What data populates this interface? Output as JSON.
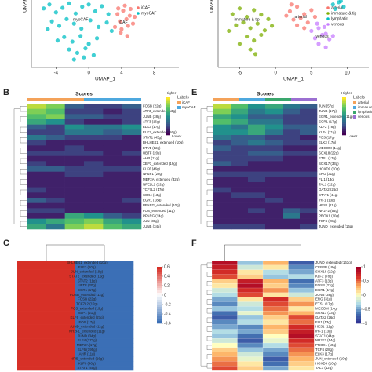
{
  "panels": [
    "B",
    "C",
    "E",
    "F"
  ],
  "chart_data": [
    {
      "type": "scatter",
      "xlabel": "UMAP_1",
      "ylabel": "UMAP_2",
      "xlim": [
        -7,
        11
      ],
      "ylim": [
        -6,
        6
      ],
      "xticks": [
        -4,
        0,
        4,
        8
      ],
      "annotations": [
        {
          "text": "myoCAF",
          "x": -1,
          "y": 2.5
        },
        {
          "text": "iCAF",
          "x": 4.2,
          "y": 2
        }
      ],
      "series": [
        {
          "name": "iCAF",
          "color": "#f8766d",
          "x": [
            3.5,
            4.2,
            5.0,
            3.8,
            4.6,
            5.4,
            3.2,
            4.0,
            4.8,
            5.6,
            3.6,
            4.4,
            5.1,
            3.9,
            4.7
          ],
          "y": [
            3.5,
            4.1,
            3.2,
            2.2,
            2.6,
            1.8,
            1.2,
            0.8,
            1.4,
            3.0,
            4.5,
            5.0,
            4.4,
            0.2,
            -0.4
          ]
        },
        {
          "name": "myoCAF",
          "color": "#00bfc4",
          "x": [
            -5.5,
            -4.8,
            -4.0,
            -3.2,
            -2.4,
            -1.6,
            -0.8,
            0.0,
            0.8,
            1.6,
            2.4,
            -4.5,
            -3.6,
            -2.7,
            -1.8,
            -0.9,
            0.2,
            1.2,
            2.2,
            -3.0,
            -2.0,
            -1.0,
            0.0,
            1.0,
            -2.4,
            -1.4,
            -0.4,
            0.6,
            -1.8,
            -0.6,
            2.8,
            -5.0,
            -3.8
          ],
          "y": [
            4.5,
            5.2,
            3.8,
            4.6,
            5.4,
            3.6,
            4.8,
            5.2,
            4.0,
            4.9,
            3.5,
            2.2,
            1.4,
            2.6,
            1.8,
            0.9,
            2.4,
            1.2,
            2.0,
            -0.6,
            -1.4,
            -0.4,
            -1.8,
            -0.8,
            -2.8,
            -3.4,
            -2.6,
            -3.8,
            -4.6,
            -4.2,
            0.5,
            0.8,
            -1.2
          ]
        }
      ],
      "legend": "upper right"
    },
    {
      "type": "scatter",
      "xlabel": "UMAP_1",
      "ylabel": "UMAP_2",
      "xlim": [
        -8,
        13
      ],
      "ylim": [
        -6,
        6
      ],
      "xticks": [
        -5,
        0,
        5,
        10
      ],
      "annotations": [
        {
          "text": "arterial",
          "x": 3.5,
          "y": 3
        },
        {
          "text": "immature & tip",
          "x": -4,
          "y": 2.5
        },
        {
          "text": "venous",
          "x": 6.5,
          "y": -0.5
        }
      ],
      "series": [
        {
          "name": "arterial",
          "color": "#f8766d",
          "x": [
            2,
            3,
            4,
            5,
            2.5,
            3.5,
            4.5,
            1.5,
            3,
            4,
            5.5,
            2.2
          ],
          "y": [
            4,
            4.8,
            3.5,
            4.2,
            2.5,
            2.8,
            2,
            3.2,
            1.5,
            1,
            3,
            5.2
          ]
        },
        {
          "name": "immature & tip",
          "color": "#7cae00",
          "x": [
            -6,
            -5,
            -4,
            -3,
            -2,
            -1,
            -5.5,
            -4.5,
            -3.5,
            -2.5,
            -1.5,
            -4,
            -3,
            -2,
            -5,
            -3.5,
            -0.5,
            -6.5,
            -2.8
          ],
          "y": [
            3.5,
            4.5,
            3,
            4.2,
            3.4,
            2.6,
            1.5,
            2,
            1,
            1.8,
            0.6,
            -0.5,
            -1.2,
            -0.2,
            -1.8,
            -2.8,
            1.4,
            0.5,
            -3.6
          ]
        },
        {
          "name": "lymphatic",
          "color": "#00bfc4",
          "x": [
            8,
            8.8,
            9.5,
            8.3,
            9.1
          ],
          "y": [
            5.2,
            5.6,
            4.8,
            4.4,
            5.8
          ]
        },
        {
          "name": "venous",
          "color": "#c77cff",
          "x": [
            5,
            6,
            7,
            5.5,
            6.5,
            7.5,
            6,
            7,
            8,
            5.8,
            6.8
          ],
          "y": [
            0.5,
            1,
            0,
            -0.8,
            -0.2,
            -1,
            -1.8,
            -2.4,
            -0.4,
            1.8,
            1.2
          ]
        }
      ],
      "legend": "upper right"
    },
    {
      "type": "heatmap",
      "title": "Scores",
      "legend_title": "Labels",
      "high_label": "Higher",
      "low_label": "Lower",
      "groups": [
        {
          "name": "iCAF",
          "color": "#f4a259"
        },
        {
          "name": "myoCAF",
          "color": "#4ea8de"
        }
      ],
      "rows": [
        "FOSB (22g)",
        "ATF3_extended (13g)",
        "JUNB (38g)",
        "ATF3 (16g)",
        "ELK3 (17g)",
        "ELK3_extended (16g)",
        "STAT1 (45g)",
        "BHLHE41_extended (10g)",
        "ETV1 (12g)",
        "UBTF (20g)",
        "AHR (11g)",
        "XBP1_extended (19g)",
        "KLF6 (46g)",
        "NR2F1 (28g)",
        "MEF2A_extended (32g)",
        "NFE2L1 (12g)",
        "TCF7L2 (17g)",
        "SOX4 (13g)",
        "EGR1 (18g)",
        "PPARG_extended (10g)",
        "FOS_extended (11g)",
        "PPARG (14g)",
        "JUN (38g)",
        "JUNB (34g)"
      ],
      "values": [
        [
          0.9,
          0.8,
          0.3,
          0.2,
          0.2,
          0.3
        ],
        [
          0.8,
          0.7,
          0.2,
          0.2,
          0.1,
          0.2
        ],
        [
          0.7,
          0.8,
          0.3,
          0.3,
          0.2,
          0.2
        ],
        [
          0.6,
          0.5,
          0.2,
          0.1,
          0.1,
          0.2
        ],
        [
          0.3,
          0.2,
          0.5,
          0.4,
          0.4,
          0.5
        ],
        [
          0.2,
          0.2,
          0.4,
          0.4,
          0.3,
          0.4
        ],
        [
          0.4,
          0.3,
          0.2,
          0.2,
          0.2,
          0.1
        ],
        [
          0.2,
          0.1,
          0.1,
          0.1,
          0.1,
          0.1
        ],
        [
          0.1,
          0.1,
          0.2,
          0.1,
          0.1,
          0.1
        ],
        [
          0.2,
          0.2,
          0.2,
          0.2,
          0.1,
          0.2
        ],
        [
          0.1,
          0.1,
          0.1,
          0.1,
          0.1,
          0.1
        ],
        [
          0.2,
          0.1,
          0.1,
          0.2,
          0.1,
          0.1
        ],
        [
          0.3,
          0.3,
          0.2,
          0.2,
          0.2,
          0.2
        ],
        [
          0.1,
          0.1,
          0.2,
          0.2,
          0.1,
          0.1
        ],
        [
          0.1,
          0.1,
          0.1,
          0.1,
          0.1,
          0.1
        ],
        [
          0.1,
          0.1,
          0.1,
          0.1,
          0.1,
          0.1
        ],
        [
          0.2,
          0.1,
          0.1,
          0.1,
          0.1,
          0.1
        ],
        [
          0.1,
          0.1,
          0.1,
          0.1,
          0.1,
          0.1
        ],
        [
          0.3,
          0.2,
          0.1,
          0.1,
          0.1,
          0.2
        ],
        [
          0.1,
          0.1,
          0.1,
          0.1,
          0.1,
          0.1
        ],
        [
          0.2,
          0.2,
          0.1,
          0.1,
          0.1,
          0.1
        ],
        [
          0.1,
          0.1,
          0.6,
          0.5,
          0.3,
          0.2
        ],
        [
          0.5,
          0.6,
          0.7,
          0.8,
          0.6,
          0.5
        ],
        [
          0.6,
          0.4,
          0.8,
          0.9,
          0.7,
          0.6
        ]
      ]
    },
    {
      "type": "heatmap",
      "title": "Scores",
      "legend_title": "Labels",
      "high_label": "Higher",
      "low_label": "Lower",
      "groups": [
        {
          "name": "arterial",
          "color": "#f4a259"
        },
        {
          "name": "immature & tip",
          "color": "#4ea8de"
        },
        {
          "name": "lymphatic",
          "color": "#3aa76d"
        },
        {
          "name": "venous",
          "color": "#9b6fd1"
        }
      ],
      "rows": [
        "JUN (57g)",
        "JUNB (17g)",
        "EGR1_extended (11g)",
        "EGR1 (17g)",
        "KLF2 (78g)",
        "KLF4 (71g)",
        "FOS (17g)",
        "ELK3 (17g)",
        "MECOM (14g)",
        "SOX18 (22g)",
        "ETS1 (17g)",
        "SOX17 (33g)",
        "HOXD9 (10g)",
        "ERG (31g)",
        "FLI1 (13g)",
        "TAL1 (12g)",
        "GATA2 (26g)",
        "STAT1 (44g)",
        "IRF1 (13g)",
        "HES1 (11g)",
        "NR2F2 (54g)",
        "PROX1 (10g)",
        "TCF4 (28g)",
        "JUND_extended (16g)"
      ],
      "values": [
        [
          0.9,
          0.7,
          0.5,
          0.6,
          0.4,
          0.3
        ],
        [
          0.8,
          0.6,
          0.4,
          0.5,
          0.3,
          0.2
        ],
        [
          0.6,
          0.5,
          0.3,
          0.3,
          0.2,
          0.2
        ],
        [
          0.7,
          0.6,
          0.4,
          0.4,
          0.2,
          0.2
        ],
        [
          0.5,
          0.4,
          0.6,
          0.5,
          0.3,
          0.3
        ],
        [
          0.5,
          0.5,
          0.6,
          0.4,
          0.2,
          0.3
        ],
        [
          0.4,
          0.3,
          0.3,
          0.2,
          0.2,
          0.1
        ],
        [
          0.2,
          0.3,
          0.4,
          0.3,
          0.2,
          0.2
        ],
        [
          0.3,
          0.2,
          0.2,
          0.2,
          0.1,
          0.1
        ],
        [
          0.2,
          0.2,
          0.3,
          0.3,
          0.2,
          0.2
        ],
        [
          0.2,
          0.2,
          0.2,
          0.2,
          0.1,
          0.1
        ],
        [
          0.3,
          0.2,
          0.1,
          0.1,
          0.1,
          0.1
        ],
        [
          0.1,
          0.1,
          0.1,
          0.1,
          0.1,
          0.1
        ],
        [
          0.2,
          0.2,
          0.2,
          0.2,
          0.2,
          0.2
        ],
        [
          0.1,
          0.1,
          0.2,
          0.1,
          0.1,
          0.1
        ],
        [
          0.1,
          0.1,
          0.1,
          0.1,
          0.1,
          0.1
        ],
        [
          0.2,
          0.1,
          0.1,
          0.1,
          0.1,
          0.1
        ],
        [
          0.1,
          0.2,
          0.2,
          0.1,
          0.1,
          0.1
        ],
        [
          0.1,
          0.1,
          0.1,
          0.2,
          0.1,
          0.1
        ],
        [
          0.1,
          0.1,
          0.1,
          0.1,
          0.1,
          0.1
        ],
        [
          0.1,
          0.1,
          0.2,
          0.1,
          0.3,
          0.2
        ],
        [
          0.1,
          0.1,
          0.1,
          0.1,
          0.4,
          0.1
        ],
        [
          0.1,
          0.1,
          0.1,
          0.1,
          0.1,
          0.1
        ],
        [
          0.2,
          0.2,
          0.2,
          0.1,
          0.1,
          0.2
        ]
      ]
    },
    {
      "type": "correlation",
      "vmin": -0.6,
      "vmax": 0.6,
      "colorbar_ticks": [
        0.6,
        0.4,
        0.2,
        0,
        -0.2,
        -0.4,
        -0.6
      ],
      "rows": [
        "BHLHE41_extended (10g)",
        "ELF3 (10g)",
        "JUN_extended (19g)",
        "STAT2_extended (16g)",
        "STAT2 (11g)",
        "UBTF (20g)",
        "EGR1 (17g)",
        "FOSB_extended (11g)",
        "FOSB (22g)",
        "TCF7L2 (12g)",
        "FOS_extended (19g)",
        "XBP1 (21g)",
        "KLF6_extended (27g)",
        "FOS (17g)",
        "JUND_extended (11g)",
        "NR2F1_extended (11g)",
        "JUND (34g)",
        "KLF4 (172g)",
        "MEF2A (17g)",
        "KLF6 (195g)",
        "AHR (11g)",
        "NFIB_extended (16g)",
        "KLF6 (46g)",
        "STAT1 (45g)"
      ],
      "values": [
        [
          0.6,
          -0.6
        ],
        [
          0.6,
          -0.6
        ],
        [
          0.6,
          -0.6
        ],
        [
          0.6,
          -0.6
        ],
        [
          0.6,
          -0.6
        ],
        [
          0.6,
          -0.6
        ],
        [
          0.6,
          -0.6
        ],
        [
          0.6,
          -0.6
        ],
        [
          0.6,
          -0.6
        ],
        [
          0.6,
          -0.6
        ],
        [
          0.6,
          -0.6
        ],
        [
          0.6,
          -0.6
        ],
        [
          0.6,
          -0.6
        ],
        [
          0.6,
          -0.6
        ],
        [
          0.6,
          -0.6
        ],
        [
          0.6,
          -0.6
        ],
        [
          0.6,
          -0.6
        ],
        [
          0.6,
          -0.6
        ],
        [
          0.6,
          -0.6
        ],
        [
          0.6,
          -0.6
        ],
        [
          0.6,
          -0.6
        ],
        [
          0.6,
          -0.6
        ],
        [
          0.6,
          -0.6
        ],
        [
          0.6,
          -0.6
        ]
      ]
    },
    {
      "type": "correlation",
      "vmin": -1,
      "vmax": 1,
      "colorbar_ticks": [
        1,
        0.5,
        0,
        -0.5,
        -1
      ],
      "rows": [
        "JUND_extended (163g)",
        "CEBPB (19g)",
        "SOX18 (22g)",
        "KLF2 (78g)",
        "ATF3 (13g)",
        "FOSB (22g)",
        "EGR1 (17g)",
        "JUNB (38g)",
        "ERG (31g)",
        "ETS1 (17g)",
        "MECOM (14g)",
        "SOX17 (33g)",
        "GATA2 (26g)",
        "FLI1 (13g)",
        "HES1 (11g)",
        "IRF1 (13g)",
        "STAT1 (44g)",
        "NR2F2 (54g)",
        "PROX1 (10g)",
        "TCF4 (28g)",
        "ELK3 (17g)",
        "JUN_extended (10g)",
        "HOXD9 (10g)",
        "TAL1 (12g)"
      ],
      "values": [
        [
          0.9,
          -0.4,
          0.3,
          -0.8
        ],
        [
          0.8,
          -0.2,
          0.1,
          -0.6
        ],
        [
          0.7,
          0.1,
          -0.3,
          -0.5
        ],
        [
          0.6,
          0.2,
          -0.4,
          -0.3
        ],
        [
          0.2,
          0.8,
          0.3,
          -0.7
        ],
        [
          0.1,
          0.9,
          0.2,
          -0.6
        ],
        [
          -0.2,
          0.7,
          0.4,
          -0.4
        ],
        [
          -0.3,
          0.6,
          0.1,
          -0.2
        ],
        [
          -0.5,
          0.1,
          0.7,
          0.2
        ],
        [
          -0.6,
          -0.2,
          0.6,
          0.4
        ],
        [
          -0.4,
          -0.3,
          0.5,
          0.1
        ],
        [
          -0.7,
          -0.1,
          0.4,
          0.3
        ],
        [
          -0.8,
          -0.4,
          0.2,
          0.6
        ],
        [
          -0.6,
          -0.3,
          0.1,
          0.5
        ],
        [
          -0.5,
          -0.6,
          0.3,
          0.7
        ],
        [
          -0.3,
          -0.5,
          0.2,
          0.8
        ],
        [
          -0.4,
          -0.7,
          0.0,
          0.9
        ],
        [
          -0.2,
          -0.8,
          -0.1,
          0.7
        ],
        [
          0.0,
          -0.6,
          -0.3,
          0.6
        ],
        [
          0.2,
          -0.4,
          -0.5,
          0.5
        ],
        [
          0.3,
          -0.2,
          -0.6,
          0.4
        ],
        [
          0.4,
          -0.1,
          -0.8,
          0.3
        ],
        [
          0.5,
          0.1,
          -0.7,
          0.2
        ],
        [
          0.6,
          0.2,
          -0.5,
          0.1
        ]
      ]
    }
  ]
}
